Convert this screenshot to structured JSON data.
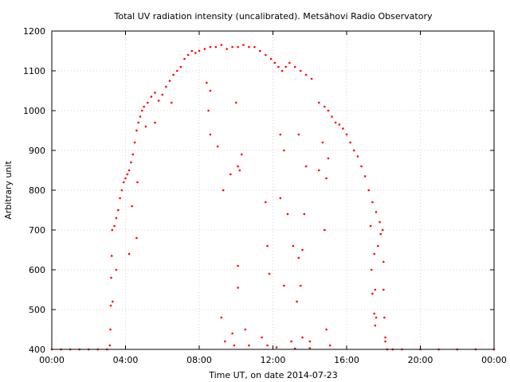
{
  "chart_data": {
    "type": "scatter",
    "title": "Total UV radiation intensity (uncalibrated). Metsähovi Radio Observatory",
    "xlabel": "Time UT, on date 2014-07-23",
    "ylabel": "Arbitrary unit",
    "xlim": [
      0,
      24
    ],
    "ylim": [
      400,
      1200
    ],
    "x_ticks": [
      0,
      4,
      8,
      12,
      16,
      20,
      24
    ],
    "x_tick_labels": [
      "00:00",
      "04:00",
      "08:00",
      "12:00",
      "16:00",
      "20:00",
      "00:00"
    ],
    "y_ticks": [
      400,
      500,
      600,
      700,
      800,
      900,
      1000,
      1100,
      1200
    ],
    "y_tick_labels": [
      "400",
      "500",
      "600",
      "700",
      "800",
      "900",
      "1000",
      "1100",
      "1200"
    ],
    "grid": true,
    "series": [
      {
        "color": "#ff0000",
        "x_unit": "hours UT",
        "points": [
          [
            0.0,
            400
          ],
          [
            0.5,
            400
          ],
          [
            1.0,
            400
          ],
          [
            1.5,
            400
          ],
          [
            2.0,
            400
          ],
          [
            2.5,
            400
          ],
          [
            3.0,
            400
          ],
          [
            3.15,
            410
          ],
          [
            3.18,
            450
          ],
          [
            3.2,
            510
          ],
          [
            3.22,
            580
          ],
          [
            3.25,
            635
          ],
          [
            3.28,
            700
          ],
          [
            3.4,
            710
          ],
          [
            3.5,
            730
          ],
          [
            3.6,
            750
          ],
          [
            3.7,
            780
          ],
          [
            3.8,
            800
          ],
          [
            3.9,
            820
          ],
          [
            4.0,
            830
          ],
          [
            4.1,
            840
          ],
          [
            4.2,
            850
          ],
          [
            4.3,
            870
          ],
          [
            4.4,
            890
          ],
          [
            4.5,
            920
          ],
          [
            4.6,
            950
          ],
          [
            4.7,
            970
          ],
          [
            4.8,
            985
          ],
          [
            4.9,
            1000
          ],
          [
            5.0,
            1010
          ],
          [
            5.2,
            1020
          ],
          [
            5.4,
            1035
          ],
          [
            5.6,
            1045
          ],
          [
            5.8,
            1025
          ],
          [
            6.0,
            1040
          ],
          [
            6.2,
            1060
          ],
          [
            6.4,
            1075
          ],
          [
            6.6,
            1090
          ],
          [
            6.8,
            1100
          ],
          [
            7.0,
            1110
          ],
          [
            7.2,
            1130
          ],
          [
            7.4,
            1140
          ],
          [
            7.6,
            1150
          ],
          [
            7.8,
            1145
          ],
          [
            8.0,
            1150
          ],
          [
            8.3,
            1155
          ],
          [
            8.6,
            1160
          ],
          [
            8.9,
            1160
          ],
          [
            9.2,
            1165
          ],
          [
            9.5,
            1155
          ],
          [
            9.8,
            1160
          ],
          [
            10.1,
            1160
          ],
          [
            10.4,
            1165
          ],
          [
            10.7,
            1160
          ],
          [
            11.0,
            1160
          ],
          [
            11.3,
            1150
          ],
          [
            11.6,
            1140
          ],
          [
            11.9,
            1130
          ],
          [
            12.1,
            1120
          ],
          [
            12.3,
            1110
          ],
          [
            12.5,
            1100
          ],
          [
            12.7,
            1110
          ],
          [
            12.9,
            1120
          ],
          [
            13.2,
            1110
          ],
          [
            13.5,
            1100
          ],
          [
            13.8,
            1090
          ],
          [
            14.1,
            1080
          ],
          [
            14.5,
            1020
          ],
          [
            14.8,
            1010
          ],
          [
            15.0,
            1000
          ],
          [
            15.2,
            985
          ],
          [
            15.4,
            970
          ],
          [
            15.6,
            965
          ],
          [
            15.8,
            955
          ],
          [
            16.0,
            940
          ],
          [
            16.2,
            920
          ],
          [
            16.4,
            900
          ],
          [
            16.6,
            885
          ],
          [
            16.8,
            860
          ],
          [
            17.0,
            835
          ],
          [
            17.2,
            800
          ],
          [
            17.4,
            770
          ],
          [
            17.6,
            745
          ],
          [
            17.8,
            720
          ],
          [
            17.95,
            700
          ],
          [
            18.0,
            620
          ],
          [
            18.05,
            480
          ],
          [
            18.1,
            420
          ],
          [
            18.2,
            400
          ],
          [
            18.5,
            400
          ],
          [
            19.0,
            400
          ],
          [
            20.0,
            400
          ],
          [
            21.0,
            400
          ],
          [
            22.0,
            400
          ],
          [
            23.0,
            400
          ],
          [
            24.0,
            400
          ],
          [
            3.3,
            520
          ],
          [
            3.5,
            600
          ],
          [
            4.2,
            640
          ],
          [
            4.35,
            760
          ],
          [
            4.6,
            680
          ],
          [
            4.65,
            820
          ],
          [
            5.1,
            960
          ],
          [
            5.6,
            970
          ],
          [
            6.5,
            1020
          ],
          [
            8.4,
            1070
          ],
          [
            8.6,
            1050
          ],
          [
            8.6,
            940
          ],
          [
            8.5,
            1000
          ],
          [
            9.0,
            910
          ],
          [
            9.3,
            800
          ],
          [
            9.7,
            840
          ],
          [
            10.0,
            1020
          ],
          [
            10.1,
            860
          ],
          [
            10.2,
            850
          ],
          [
            10.3,
            890
          ],
          [
            10.1,
            610
          ],
          [
            10.1,
            555
          ],
          [
            9.2,
            480
          ],
          [
            9.8,
            440
          ],
          [
            10.5,
            450
          ],
          [
            11.6,
            770
          ],
          [
            11.7,
            660
          ],
          [
            11.8,
            590
          ],
          [
            12.4,
            940
          ],
          [
            12.4,
            780
          ],
          [
            12.6,
            900
          ],
          [
            12.8,
            740
          ],
          [
            13.1,
            660
          ],
          [
            13.3,
            520
          ],
          [
            13.4,
            630
          ],
          [
            13.5,
            560
          ],
          [
            13.6,
            650
          ],
          [
            13.7,
            740
          ],
          [
            13.8,
            860
          ],
          [
            13.4,
            940
          ],
          [
            14.5,
            850
          ],
          [
            14.7,
            920
          ],
          [
            14.9,
            830
          ],
          [
            15.0,
            880
          ],
          [
            14.8,
            700
          ],
          [
            14.9,
            450
          ],
          [
            12.6,
            560
          ],
          [
            13.0,
            420
          ],
          [
            13.6,
            430
          ],
          [
            14.0,
            420
          ],
          [
            11.4,
            430
          ],
          [
            10.7,
            410
          ],
          [
            9.4,
            420
          ],
          [
            9.9,
            410
          ],
          [
            11.7,
            410
          ],
          [
            12.2,
            405
          ],
          [
            13.2,
            402
          ],
          [
            14.0,
            403
          ],
          [
            15.1,
            410
          ],
          [
            17.3,
            710
          ],
          [
            17.35,
            600
          ],
          [
            17.5,
            640
          ],
          [
            17.55,
            550
          ],
          [
            17.5,
            490
          ],
          [
            17.6,
            480
          ],
          [
            17.7,
            660
          ],
          [
            17.85,
            690
          ],
          [
            18.0,
            550
          ],
          [
            18.1,
            430
          ],
          [
            17.4,
            540
          ],
          [
            17.55,
            460
          ]
        ]
      }
    ]
  }
}
